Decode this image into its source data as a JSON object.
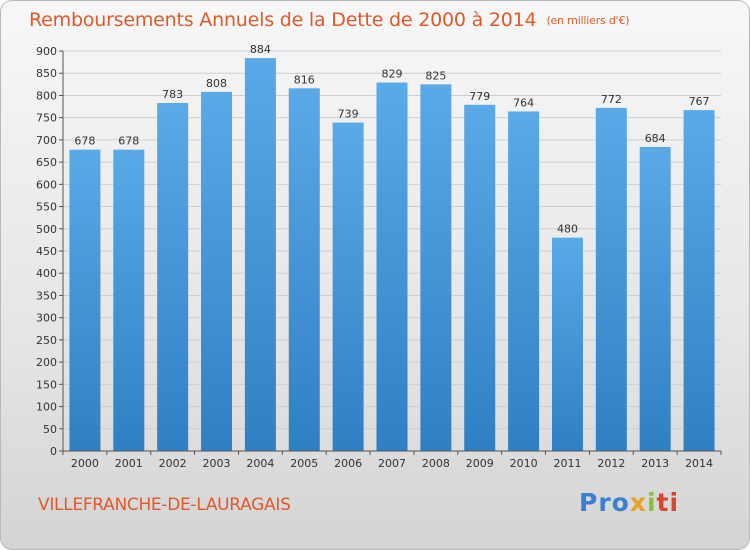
{
  "title": "Remboursements Annuels de la Dette de 2000 à 2014",
  "subtitle": "(en milliers d'€)",
  "city": "VILLEFRANCHE-DE-LAURAGAIS",
  "logo": {
    "p1": "Pro",
    "p2": "x",
    "p3": "i",
    "p4": "ti"
  },
  "colors": {
    "title": "#e0592a",
    "bar_top": "#5aaae8",
    "bar_bottom": "#2f7fc4",
    "grid": "#cfcfcf"
  },
  "chart_data": {
    "type": "bar",
    "title": "Remboursements Annuels de la Dette de 2000 à 2014",
    "ylabel": "en milliers d'€",
    "categories": [
      "2000",
      "2001",
      "2002",
      "2003",
      "2004",
      "2005",
      "2006",
      "2007",
      "2008",
      "2009",
      "2010",
      "2011",
      "2012",
      "2013",
      "2014"
    ],
    "values": [
      678,
      678,
      783,
      808,
      884,
      816,
      739,
      829,
      825,
      779,
      764,
      480,
      772,
      684,
      767
    ],
    "ylim": [
      0,
      900
    ],
    "yticks": [
      0,
      50,
      100,
      150,
      200,
      250,
      300,
      350,
      400,
      450,
      500,
      550,
      600,
      650,
      700,
      750,
      800,
      850,
      900
    ],
    "grid": true
  }
}
